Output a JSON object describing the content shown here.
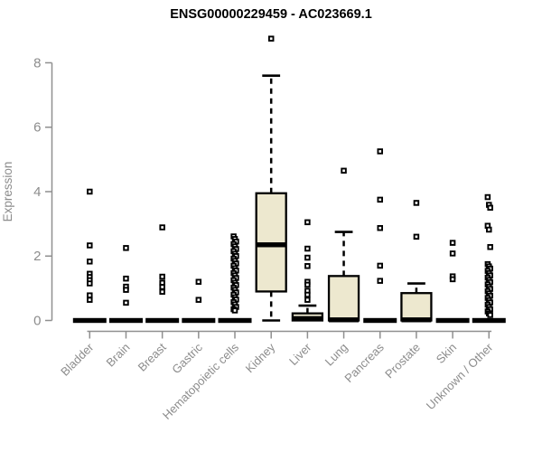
{
  "chart_data": {
    "type": "boxplot",
    "title": "ENSG00000229459 - AC023669.1",
    "ylabel": "Expression",
    "xlabel": "",
    "y_ticks": [
      0,
      2,
      4,
      6,
      8
    ],
    "ylim": [
      -0.2,
      8.9
    ],
    "grid": false,
    "legend": "none",
    "colors": {
      "box_fill": "#ede8cf",
      "box_stroke": "#000000",
      "median": "#000000",
      "whisker": "#000000",
      "outlier_stroke": "#000000",
      "outlier_fill": "#ffffff",
      "axis": "#8f8f8f",
      "tick_text": "#8c8c8c",
      "title_text": "#000000",
      "background": "#ffffff"
    },
    "categories": [
      "Bladder",
      "Brain",
      "Breast",
      "Gastric",
      "Hematopoietic cells",
      "Kidney",
      "Liver",
      "Lung",
      "Pancreas",
      "Prostate",
      "Skin",
      "Unknown / Other"
    ],
    "boxes": [
      {
        "label": "Bladder",
        "q1": 0,
        "median": 0,
        "q3": 0,
        "whisker_low": 0,
        "whisker_high": 0,
        "outliers": [
          4.0,
          2.33,
          1.83,
          1.45,
          1.35,
          1.25,
          1.15,
          0.78,
          0.64
        ]
      },
      {
        "label": "Brain",
        "q1": 0,
        "median": 0,
        "q3": 0,
        "whisker_low": 0,
        "whisker_high": 0,
        "outliers": [
          2.25,
          1.3,
          1.05,
          0.95,
          0.55
        ]
      },
      {
        "label": "Breast",
        "q1": 0,
        "median": 0,
        "q3": 0,
        "whisker_low": 0,
        "whisker_high": 0,
        "outliers": [
          2.89,
          1.36,
          1.17,
          1.04,
          0.89
        ]
      },
      {
        "label": "Gastric",
        "q1": 0,
        "median": 0,
        "q3": 0,
        "whisker_low": 0,
        "whisker_high": 0,
        "outliers": [
          1.2,
          0.64
        ]
      },
      {
        "label": "Hematopoietic cells",
        "q1": 0,
        "median": 0,
        "q3": 0,
        "whisker_low": 0,
        "whisker_high": 0,
        "outliers": [
          2.61,
          2.53,
          2.45,
          2.37,
          2.3,
          2.22,
          2.15,
          2.07,
          2.0,
          1.92,
          1.85,
          1.77,
          1.7,
          1.62,
          1.55,
          1.47,
          1.4,
          1.32,
          1.25,
          1.17,
          1.1,
          1.02,
          0.95,
          0.87,
          0.8,
          0.72,
          0.65,
          0.57,
          0.5,
          0.42,
          0.35,
          0.31
        ]
      },
      {
        "label": "Kidney",
        "q1": 0.9,
        "median": 2.35,
        "q3": 3.95,
        "whisker_low": 0,
        "whisker_high": 7.6,
        "outliers": [
          8.75
        ]
      },
      {
        "label": "Liver",
        "q1": 0,
        "median": 0.06,
        "q3": 0.22,
        "whisker_low": 0,
        "whisker_high": 0.46,
        "outliers": [
          3.05,
          2.23,
          1.95,
          1.69,
          1.2,
          1.11,
          0.92,
          0.8,
          0.64
        ]
      },
      {
        "label": "Lung",
        "q1": 0,
        "median": 0.02,
        "q3": 1.38,
        "whisker_low": 0,
        "whisker_high": 2.75,
        "outliers": [
          4.65
        ]
      },
      {
        "label": "Pancreas",
        "q1": 0,
        "median": 0,
        "q3": 0,
        "whisker_low": 0,
        "whisker_high": 0,
        "outliers": [
          5.25,
          3.75,
          2.87,
          1.7,
          1.23
        ]
      },
      {
        "label": "Prostate",
        "q1": 0,
        "median": 0.02,
        "q3": 0.85,
        "whisker_low": 0,
        "whisker_high": 1.15,
        "outliers": [
          3.65,
          2.6
        ]
      },
      {
        "label": "Skin",
        "q1": 0,
        "median": 0,
        "q3": 0,
        "whisker_low": 0,
        "whisker_high": 0,
        "outliers": [
          2.41,
          2.08,
          1.37,
          1.28
        ]
      },
      {
        "label": "Unknown / Other",
        "q1": 0,
        "median": 0,
        "q3": 0,
        "whisker_low": 0,
        "whisker_high": 0,
        "outliers": [
          3.83,
          3.59,
          3.5,
          2.94,
          2.82,
          2.28,
          1.75,
          1.68,
          1.61,
          1.54,
          1.47,
          1.4,
          1.33,
          1.26,
          1.19,
          1.12,
          1.05,
          0.98,
          0.91,
          0.84,
          0.77,
          0.7,
          0.63,
          0.56,
          0.49,
          0.42,
          0.35,
          0.28,
          0.22,
          0.17
        ]
      }
    ]
  }
}
